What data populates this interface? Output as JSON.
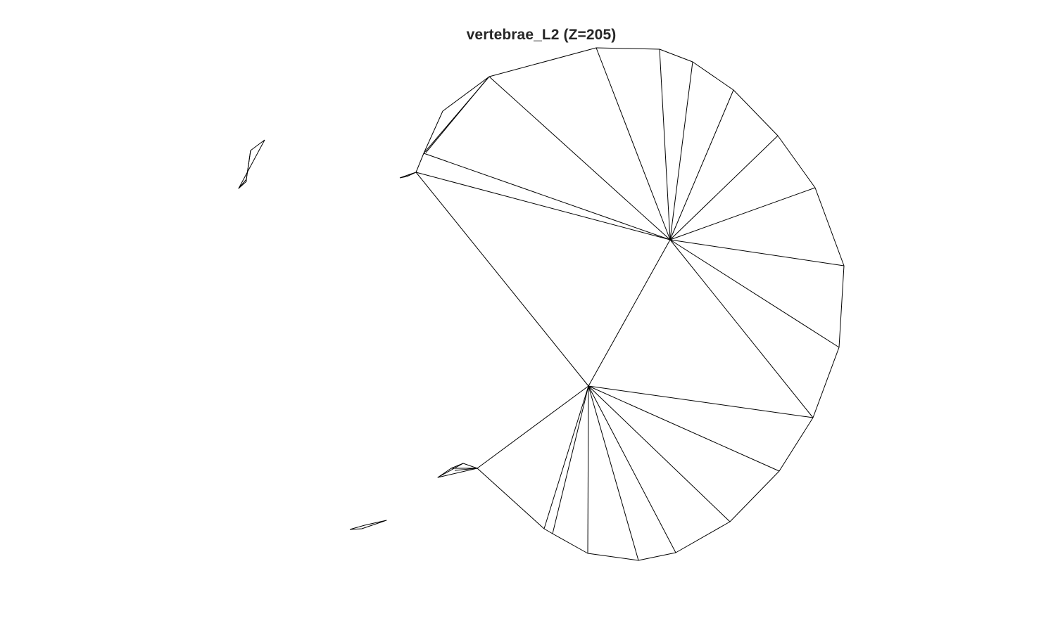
{
  "figure": {
    "title": "vertebrae_L2 (Z=205)",
    "stroke_color": "#000000",
    "title_color": "#262626",
    "background": "#ffffff"
  }
}
